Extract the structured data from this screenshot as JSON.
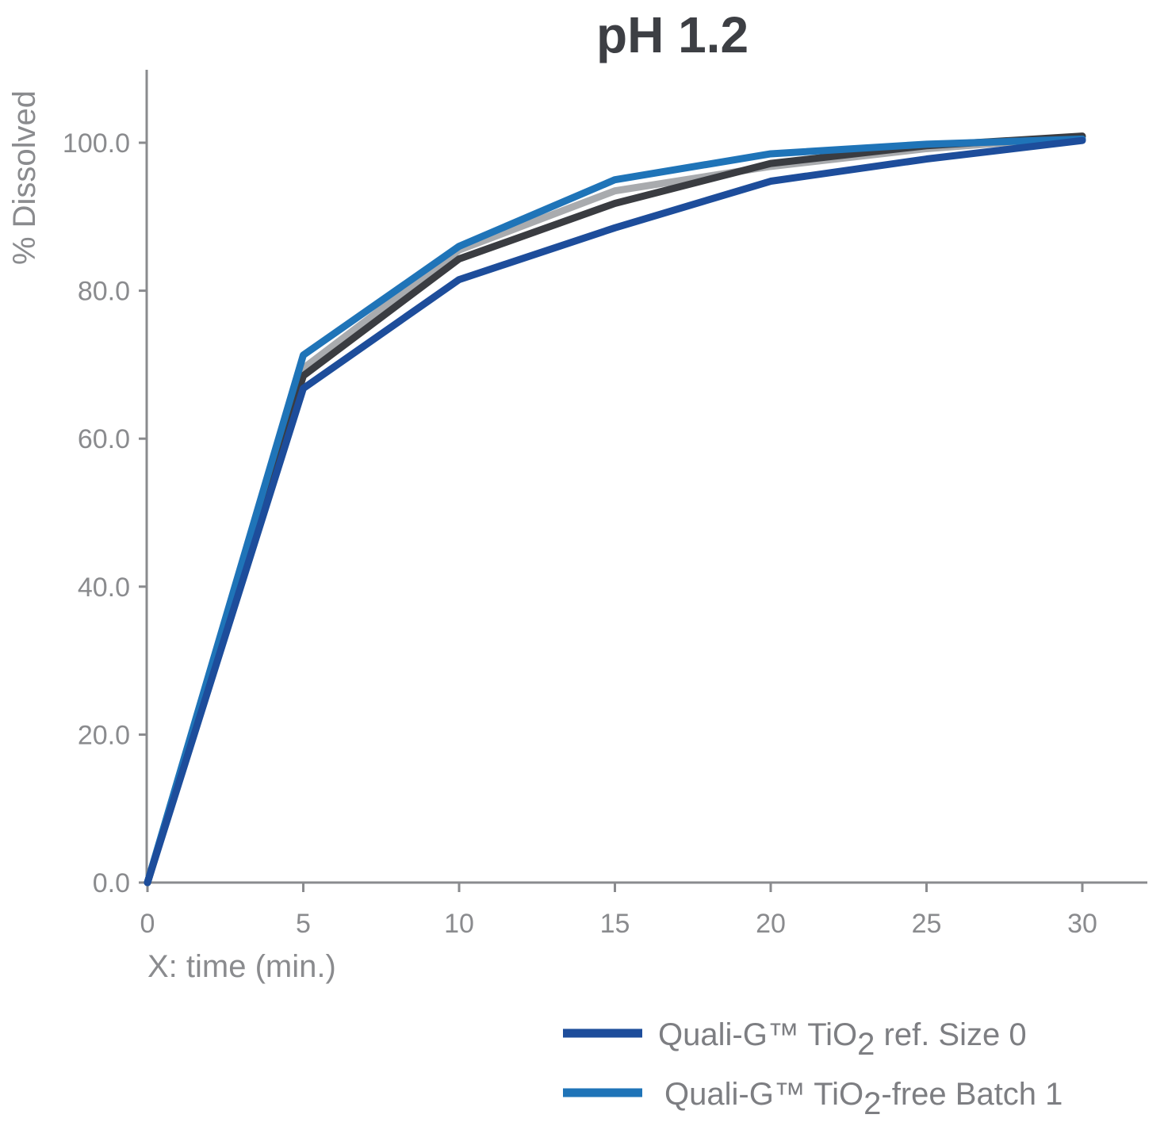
{
  "chart_data": {
    "type": "line",
    "title": "pH 1.2",
    "xlabel": "X: time (min.)",
    "ylabel": "% Dissolved",
    "x": [
      0,
      5,
      10,
      15,
      20,
      25,
      30
    ],
    "xticks": [
      "0",
      "5",
      "10",
      "15",
      "20",
      "25",
      "30"
    ],
    "yticks": [
      "0.0",
      "20.0",
      "40.0",
      "60.0",
      "80.0",
      "100.0"
    ],
    "ytick_values": [
      0,
      20,
      40,
      60,
      80,
      100
    ],
    "xlim": [
      0,
      32
    ],
    "ylim": [
      0,
      110
    ],
    "grid": false,
    "legend_position": "bottom-right",
    "series": [
      {
        "color": "#a9abae",
        "values": [
          0,
          69.5,
          85.5,
          93.5,
          96.8,
          99.2,
          100.8
        ]
      },
      {
        "color": "#3a3c41",
        "values": [
          0,
          68.5,
          84.3,
          91.8,
          97.2,
          99.6,
          100.9
        ]
      },
      {
        "name": "Quali-G™ TiO2-free Batch 1",
        "legend_main": "Quali-G™ TiO",
        "legend_sub": "2",
        "legend_rest": "-free Batch 1",
        "color": "#1f74b8",
        "values": [
          0,
          71.3,
          86.0,
          95.0,
          98.5,
          99.8,
          100.5
        ]
      },
      {
        "name": "Quali-G™ TiO2 ref. Size 0",
        "legend_main": "Quali-G™ TiO",
        "legend_sub": "2",
        "legend_rest": " ref. Size 0",
        "color": "#1d4d9b",
        "values": [
          0,
          66.8,
          81.5,
          88.5,
          94.8,
          97.8,
          100.3
        ]
      }
    ],
    "legend_order": [
      3,
      2
    ]
  }
}
